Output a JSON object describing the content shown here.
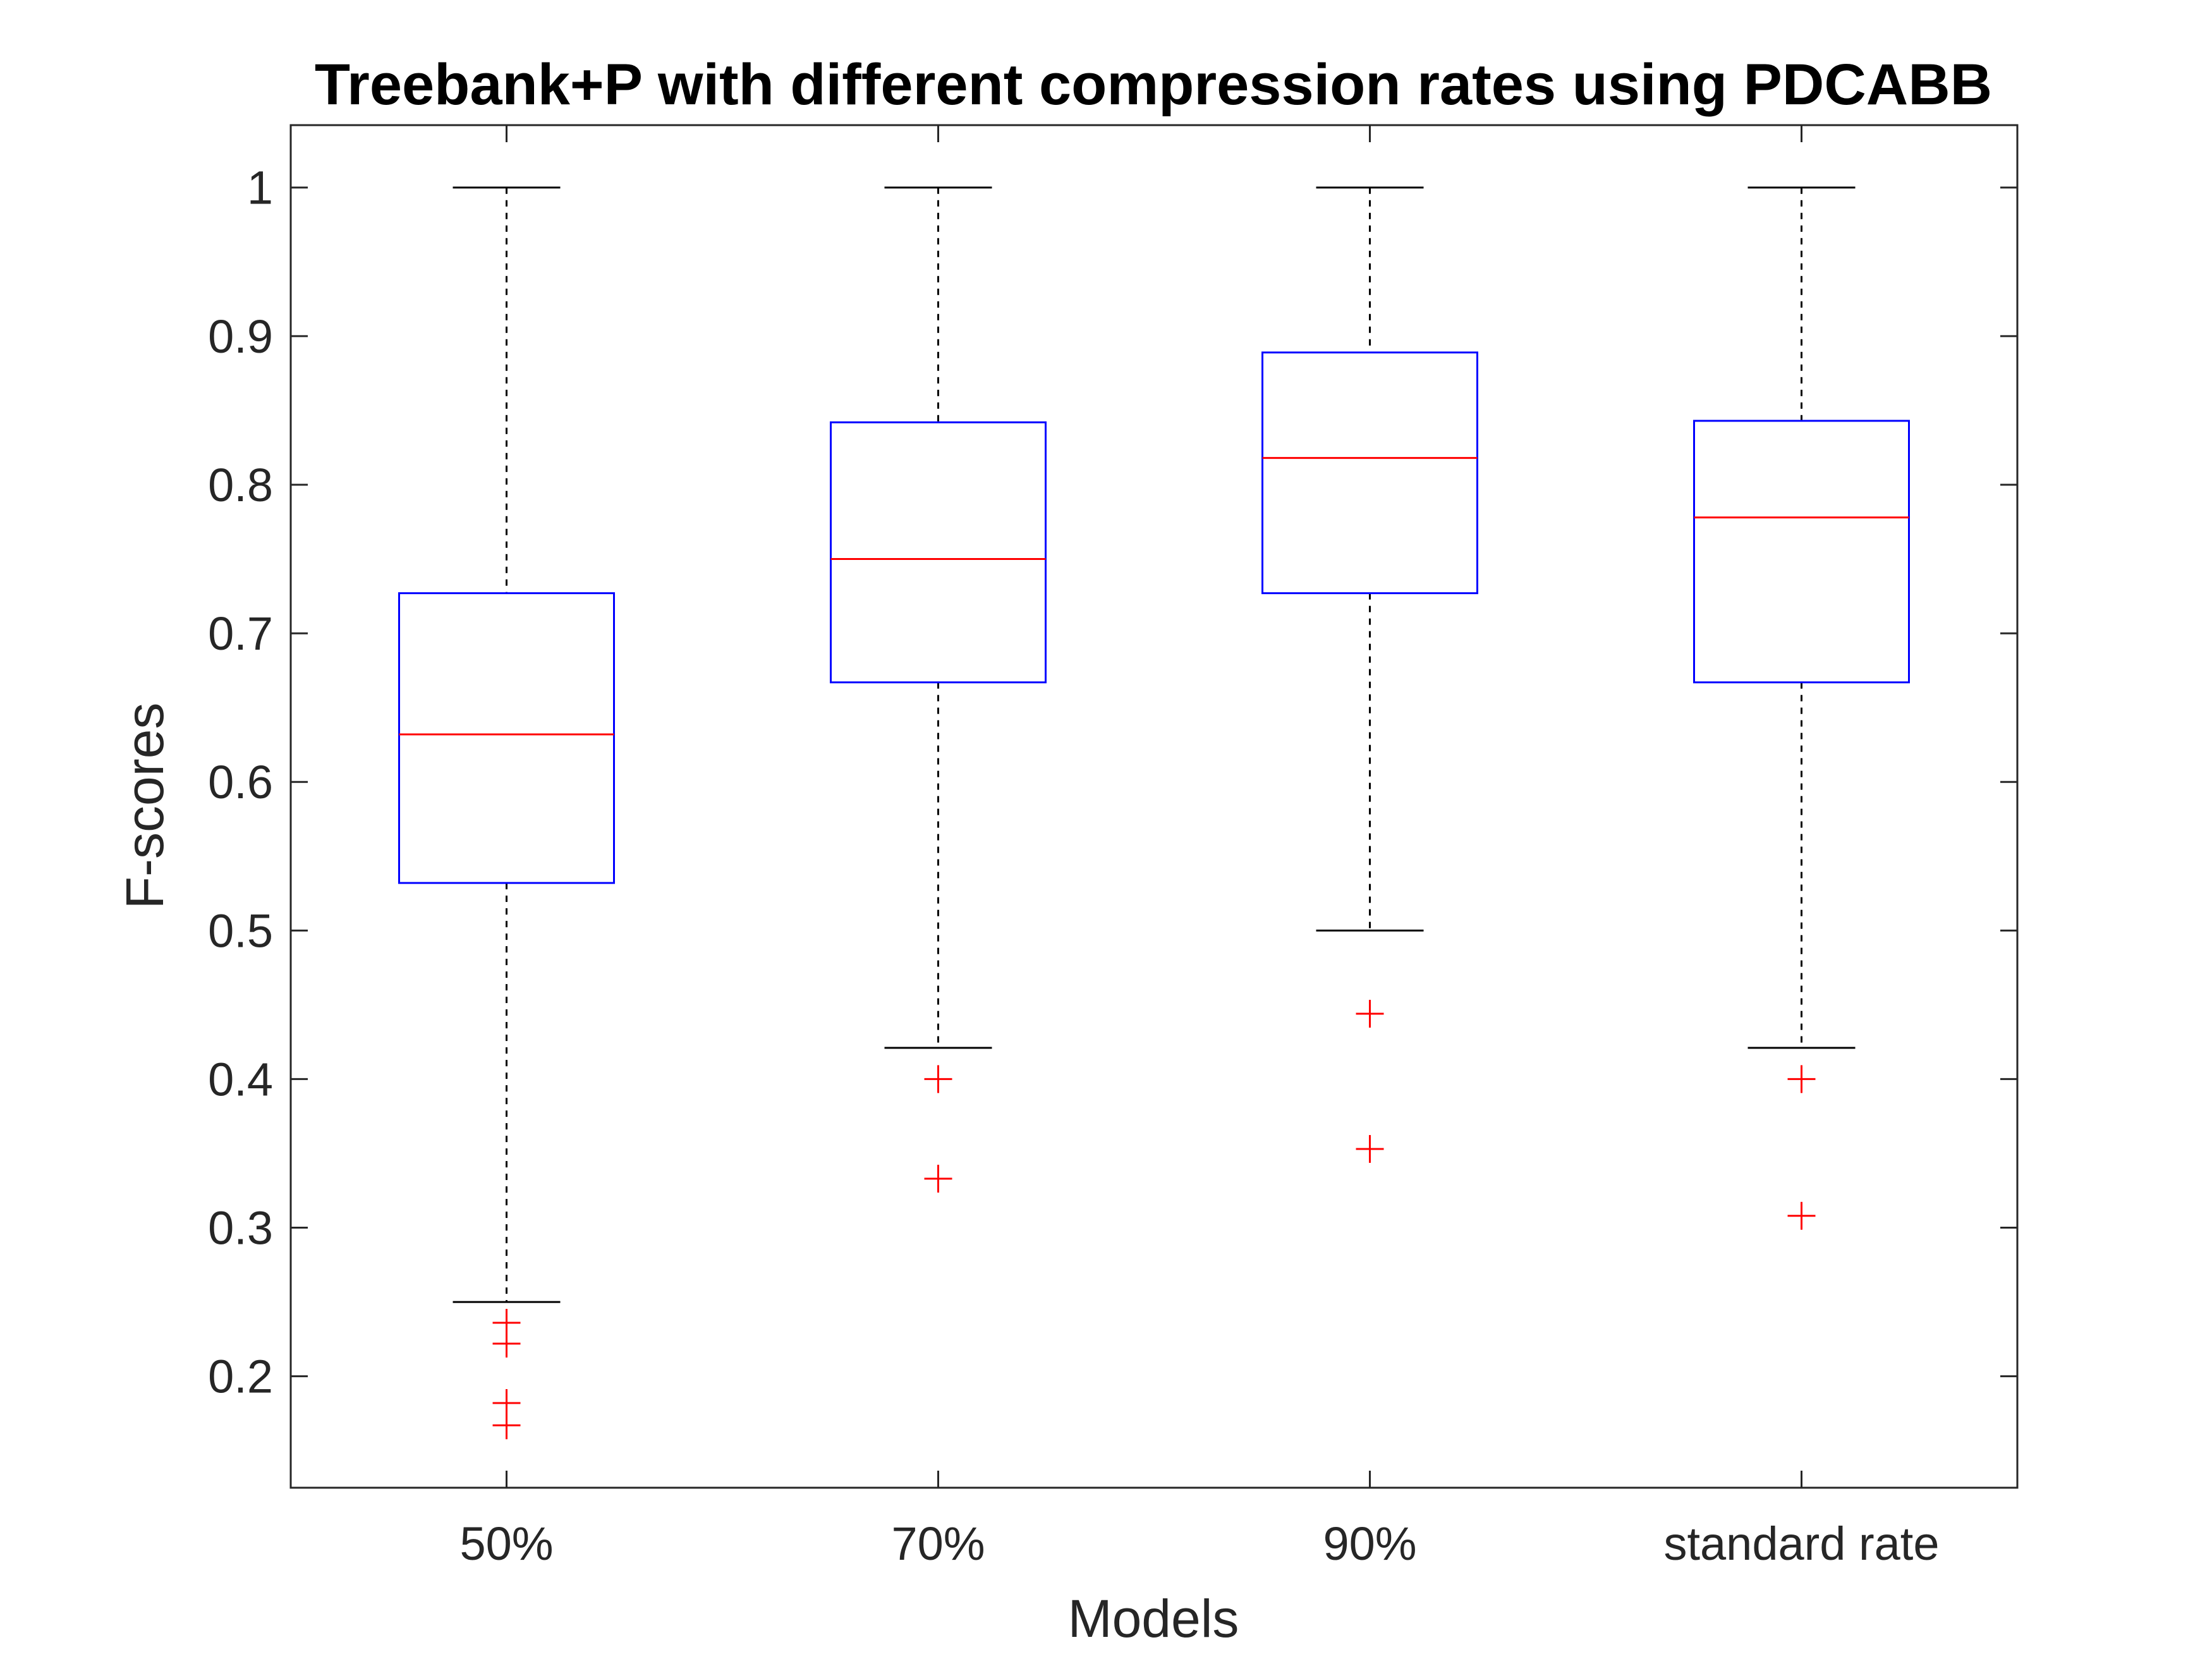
{
  "chart_data": {
    "type": "boxplot",
    "title": "Treebank+P with different compression rates using PDCABB",
    "xlabel": "Models",
    "ylabel": "F-scores",
    "ylim": [
      0.125,
      1.042
    ],
    "yticks": [
      0.2,
      0.3,
      0.4,
      0.5,
      0.6,
      0.7,
      0.8,
      0.9,
      1
    ],
    "ytick_labels": [
      "0.2",
      "0.3",
      "0.4",
      "0.5",
      "0.6",
      "0.7",
      "0.8",
      "0.9",
      "1"
    ],
    "categories": [
      "50%",
      "70%",
      "90%",
      "standard rate"
    ],
    "boxes": [
      {
        "name": "50%",
        "whisker_low": 0.25,
        "q1": 0.532,
        "median": 0.632,
        "q3": 0.727,
        "whisker_high": 1.0,
        "outliers": [
          0.236,
          0.222,
          0.182,
          0.167
        ]
      },
      {
        "name": "70%",
        "whisker_low": 0.421,
        "q1": 0.667,
        "median": 0.75,
        "q3": 0.842,
        "whisker_high": 1.0,
        "outliers": [
          0.4,
          0.333
        ]
      },
      {
        "name": "90%",
        "whisker_low": 0.5,
        "q1": 0.727,
        "median": 0.818,
        "q3": 0.889,
        "whisker_high": 1.0,
        "outliers": [
          0.444,
          0.353
        ]
      },
      {
        "name": "standard rate",
        "whisker_low": 0.421,
        "q1": 0.667,
        "median": 0.778,
        "q3": 0.843,
        "whisker_high": 1.0,
        "outliers": [
          0.4,
          0.308
        ]
      }
    ],
    "colors": {
      "box": "#0000ff",
      "median": "#ff0000",
      "outlier": "#ff0000",
      "whisker": "#000000",
      "axes": "#262626"
    }
  }
}
